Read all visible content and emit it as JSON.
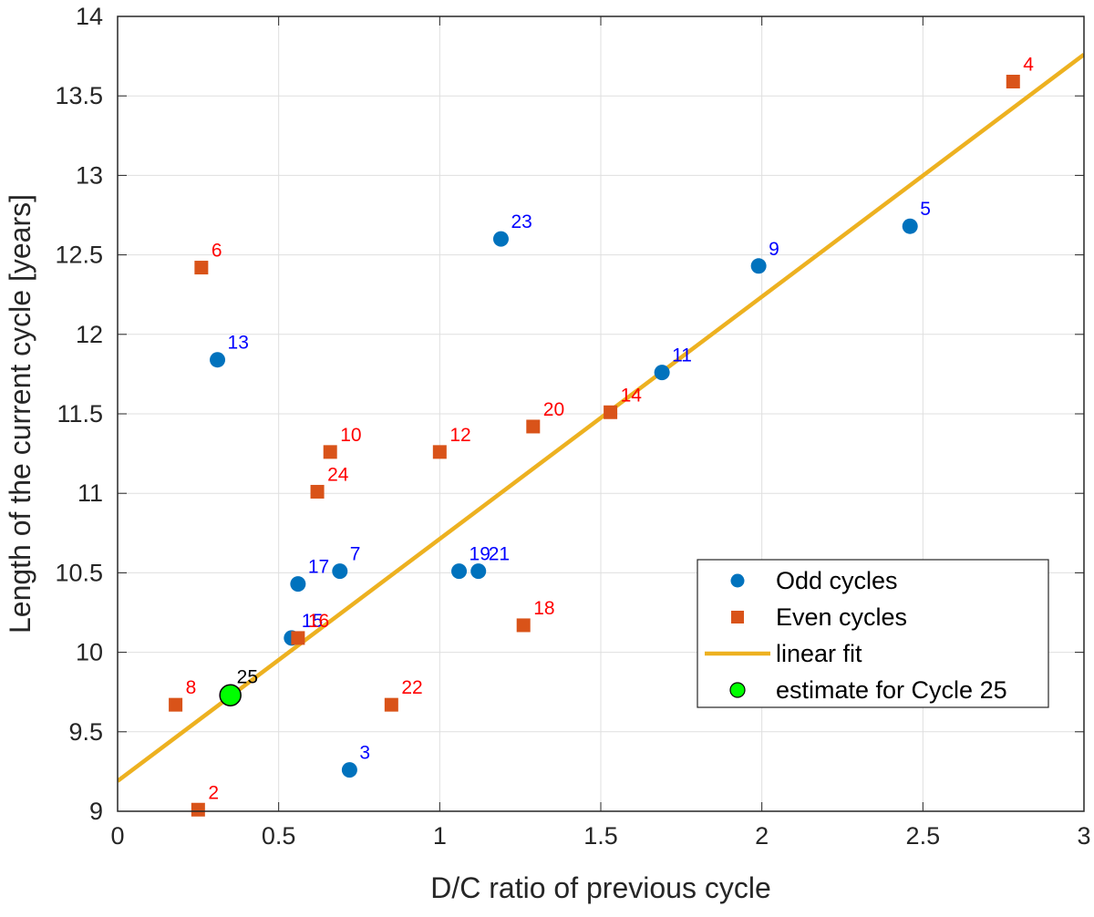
{
  "chart_data": {
    "type": "scatter",
    "xlabel": "D/C ratio of previous cycle",
    "ylabel": "Length of the current cycle [years]",
    "xlim": [
      0,
      3
    ],
    "ylim": [
      9,
      14
    ],
    "x_ticks": [
      "0",
      "0.5",
      "1",
      "1.5",
      "2",
      "2.5",
      "3"
    ],
    "y_ticks": [
      "9",
      "9.5",
      "10",
      "10.5",
      "11",
      "11.5",
      "12",
      "12.5",
      "13",
      "13.5",
      "14"
    ],
    "grid": true,
    "legend_position": "bottom-right",
    "colors": {
      "odd": "#0072BD",
      "even": "#D95319",
      "fit": "#EDB120",
      "estimate": "#00FF00",
      "odd_label": "#0000FF",
      "even_label": "#FF0000",
      "estimate_label": "#000000"
    },
    "series": [
      {
        "name": "Odd cycles",
        "marker": "circle",
        "points": [
          {
            "label": "3",
            "x": 0.72,
            "y": 9.26
          },
          {
            "label": "5",
            "x": 2.46,
            "y": 12.68
          },
          {
            "label": "7",
            "x": 0.69,
            "y": 10.51
          },
          {
            "label": "9",
            "x": 1.99,
            "y": 12.43
          },
          {
            "label": "11",
            "x": 1.69,
            "y": 11.76
          },
          {
            "label": "13",
            "x": 0.31,
            "y": 11.84
          },
          {
            "label": "15",
            "x": 0.54,
            "y": 10.09
          },
          {
            "label": "17",
            "x": 0.56,
            "y": 10.43
          },
          {
            "label": "19",
            "x": 1.06,
            "y": 10.51
          },
          {
            "label": "21",
            "x": 1.12,
            "y": 10.51
          },
          {
            "label": "23",
            "x": 1.19,
            "y": 12.6
          }
        ]
      },
      {
        "name": "Even cycles",
        "marker": "square",
        "points": [
          {
            "label": "2",
            "x": 0.25,
            "y": 9.01
          },
          {
            "label": "4",
            "x": 2.78,
            "y": 13.59
          },
          {
            "label": "6",
            "x": 0.26,
            "y": 12.42
          },
          {
            "label": "8",
            "x": 0.18,
            "y": 9.67
          },
          {
            "label": "10",
            "x": 0.66,
            "y": 11.26
          },
          {
            "label": "12",
            "x": 1.0,
            "y": 11.26
          },
          {
            "label": "14",
            "x": 1.53,
            "y": 11.51
          },
          {
            "label": "16",
            "x": 0.56,
            "y": 10.09
          },
          {
            "label": "18",
            "x": 1.26,
            "y": 10.17
          },
          {
            "label": "20",
            "x": 1.29,
            "y": 11.42
          },
          {
            "label": "22",
            "x": 0.85,
            "y": 9.67
          },
          {
            "label": "24",
            "x": 0.62,
            "y": 11.01
          }
        ]
      },
      {
        "name": "linear fit",
        "type": "line",
        "x": [
          0,
          3
        ],
        "y": [
          9.19,
          13.76
        ]
      },
      {
        "name": "estimate for Cycle 25",
        "marker": "circle-large",
        "points": [
          {
            "label": "25",
            "x": 0.35,
            "y": 9.73
          }
        ]
      }
    ]
  }
}
